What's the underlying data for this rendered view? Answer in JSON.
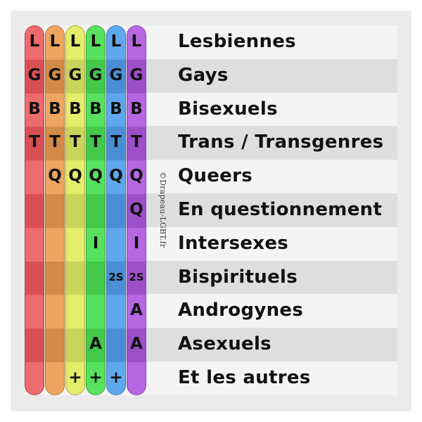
{
  "rows": [
    {
      "label": "Lesbiennes",
      "letters": [
        "L",
        "L",
        "L",
        "L",
        "L",
        "L"
      ]
    },
    {
      "label": "Gays",
      "letters": [
        "G",
        "G",
        "G",
        "G",
        "G",
        "G"
      ]
    },
    {
      "label": "Bisexuels",
      "letters": [
        "B",
        "B",
        "B",
        "B",
        "B",
        "B"
      ]
    },
    {
      "label": "Trans / Transgenres",
      "letters": [
        "T",
        "T",
        "T",
        "T",
        "T",
        "T"
      ]
    },
    {
      "label": "Queers",
      "letters": [
        "",
        "Q",
        "Q",
        "Q",
        "Q",
        "Q"
      ]
    },
    {
      "label": "En questionnement",
      "letters": [
        "",
        "",
        "",
        "",
        "",
        "Q"
      ]
    },
    {
      "label": "Intersexes",
      "letters": [
        "",
        "",
        "",
        "I",
        "",
        "I"
      ]
    },
    {
      "label": "Bispirituels",
      "letters": [
        "",
        "",
        "",
        "",
        "2S",
        "2S"
      ]
    },
    {
      "label": "Androgynes",
      "letters": [
        "",
        "",
        "",
        "",
        "",
        "A"
      ]
    },
    {
      "label": "Asexuels",
      "letters": [
        "",
        "",
        "",
        "A",
        "",
        "A"
      ]
    },
    {
      "label": "Et les autres",
      "letters": [
        "",
        "",
        "+",
        "+",
        "+",
        ""
      ]
    }
  ],
  "columns": [
    {
      "light": "#ed6a6d",
      "dark": "#d85054"
    },
    {
      "light": "#eda55f",
      "dark": "#d48a47"
    },
    {
      "light": "#e3ec6b",
      "dark": "#c9d45a"
    },
    {
      "light": "#57e15f",
      "dark": "#43c84c"
    },
    {
      "light": "#5ea7ec",
      "dark": "#4a8ed6"
    },
    {
      "light": "#b767e2",
      "dark": "#9d4fc9"
    }
  ],
  "watermark": "©Drapeau-LGBT.fr"
}
